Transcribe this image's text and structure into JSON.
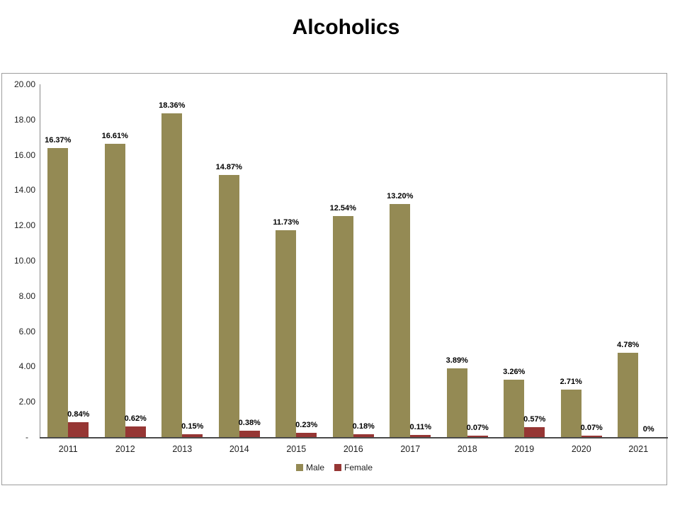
{
  "title": "Alcoholics",
  "chart_data": {
    "type": "bar",
    "title": "Alcoholics",
    "xlabel": "",
    "ylabel": "",
    "categories": [
      "2011",
      "2012",
      "2013",
      "2014",
      "2015",
      "2016",
      "2017",
      "2018",
      "2019",
      "2020",
      "2021"
    ],
    "series": [
      {
        "name": "Male",
        "color": "#948A54",
        "values": [
          16.37,
          16.61,
          18.36,
          14.87,
          11.73,
          12.54,
          13.2,
          3.89,
          3.26,
          2.71,
          4.78
        ],
        "labels": [
          "16.37%",
          "16.61%",
          "18.36%",
          "14.87%",
          "11.73%",
          "12.54%",
          "13.20%",
          "3.89%",
          "3.26%",
          "2.71%",
          "4.78%"
        ]
      },
      {
        "name": "Female",
        "color": "#963634",
        "values": [
          0.84,
          0.62,
          0.15,
          0.38,
          0.23,
          0.18,
          0.11,
          0.07,
          0.57,
          0.07,
          0
        ],
        "labels": [
          "0.84%",
          "0.62%",
          "0.15%",
          "0.38%",
          "0.23%",
          "0.18%",
          "0.11%",
          "0.07%",
          "0.57%",
          "0.07%",
          "0%"
        ]
      }
    ],
    "ylim": [
      0,
      20
    ],
    "y_ticks": [
      {
        "value": 20,
        "label": "20.00"
      },
      {
        "value": 18,
        "label": "18.00"
      },
      {
        "value": 16,
        "label": "16.00"
      },
      {
        "value": 14,
        "label": "14.00"
      },
      {
        "value": 12,
        "label": "12.00"
      },
      {
        "value": 10,
        "label": "10.00"
      },
      {
        "value": 8,
        "label": "8.00"
      },
      {
        "value": 6,
        "label": "6.00"
      },
      {
        "value": 4,
        "label": "4.00"
      },
      {
        "value": 2,
        "label": "2.00"
      },
      {
        "value": 0,
        "label": "-   "
      }
    ],
    "grid": false,
    "legend_position": "bottom"
  }
}
